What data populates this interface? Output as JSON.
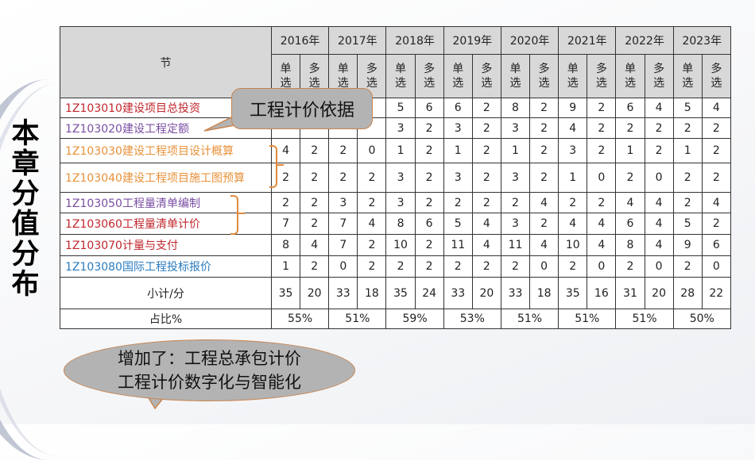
{
  "side_title": "本章分值分布",
  "table": {
    "section_header": "节",
    "years": [
      "2016年",
      "2017年",
      "2018年",
      "2019年",
      "2020年",
      "2021年",
      "2022年",
      "2023年"
    ],
    "sub_headers": {
      "single": "单选",
      "multiple": "多选"
    },
    "rows": [
      {
        "name": "1Z103010建设项目总投资",
        "color": "#c0272d",
        "values": [
          "",
          "",
          "",
          "",
          "5",
          "6",
          "6",
          "2",
          "8",
          "2",
          "9",
          "2",
          "6",
          "4",
          "5",
          "4"
        ]
      },
      {
        "name": "1Z103020建设工程定额",
        "color": "#7a4ea3",
        "values": [
          "",
          "",
          "",
          "",
          "3",
          "2",
          "3",
          "2",
          "3",
          "2",
          "4",
          "2",
          "2",
          "2",
          "2",
          "2"
        ]
      },
      {
        "name": "1Z103030建设工程项目设计概算",
        "color": "#e8913a",
        "values": [
          "4",
          "2",
          "2",
          "0",
          "1",
          "2",
          "1",
          "2",
          "1",
          "2",
          "3",
          "2",
          "1",
          "2",
          "1",
          "2"
        ]
      },
      {
        "name": "1Z103040建设工程项目施工图预算",
        "color": "#e8913a",
        "values": [
          "2",
          "2",
          "2",
          "2",
          "3",
          "2",
          "3",
          "2",
          "3",
          "2",
          "1",
          "0",
          "2",
          "0",
          "2",
          "2"
        ]
      },
      {
        "name": "1Z103050工程量清单编制",
        "color": "#7a4ea3",
        "values": [
          "2",
          "2",
          "3",
          "2",
          "3",
          "2",
          "2",
          "2",
          "2",
          "4",
          "2",
          "2",
          "4",
          "4",
          "2",
          "4"
        ]
      },
      {
        "name": "1Z103060工程量清单计价",
        "color": "#c0272d",
        "values": [
          "7",
          "2",
          "7",
          "4",
          "8",
          "6",
          "5",
          "4",
          "3",
          "2",
          "4",
          "4",
          "6",
          "4",
          "5",
          "2"
        ]
      },
      {
        "name": "1Z103070计量与支付",
        "color": "#c0272d",
        "values": [
          "8",
          "4",
          "7",
          "2",
          "10",
          "2",
          "11",
          "4",
          "11",
          "4",
          "10",
          "4",
          "8",
          "4",
          "9",
          "6"
        ]
      },
      {
        "name": "1Z103080国际工程投标报价",
        "color": "#2a7bbf",
        "values": [
          "1",
          "2",
          "0",
          "2",
          "2",
          "2",
          "2",
          "2",
          "2",
          "0",
          "2",
          "0",
          "2",
          "0",
          "2",
          "0"
        ]
      }
    ],
    "subtotal": {
      "label": "小计/分",
      "values": [
        "35",
        "20",
        "33",
        "18",
        "35",
        "24",
        "33",
        "20",
        "33",
        "18",
        "35",
        "16",
        "31",
        "20",
        "28",
        "22"
      ]
    },
    "percentage": {
      "label": "占比%",
      "values": [
        "55%",
        "51%",
        "59%",
        "53%",
        "51%",
        "51%",
        "51%",
        "50%"
      ]
    }
  },
  "callouts": {
    "pricing_basis": "工程计价依据",
    "added_line1": "增加了：工程总承包计价",
    "added_line2": "工程计价数字化与智能化"
  },
  "colors": {
    "red": "#c0272d",
    "purple": "#7a4ea3",
    "orange": "#e8913a",
    "blue": "#2a7bbf",
    "header_bg": "#d8d8d8",
    "bubble_bg": "#b3b3b3",
    "bubble_border": "#c9844e"
  }
}
